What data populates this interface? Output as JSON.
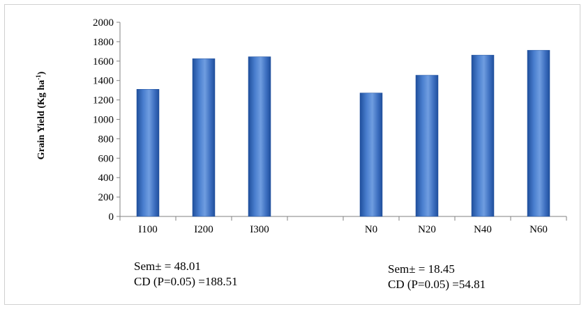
{
  "chart_data": {
    "type": "bar",
    "categories": [
      "I100",
      "I200",
      "I300",
      "",
      "N0",
      "N20",
      "N40",
      "N60"
    ],
    "values": [
      1310,
      1625,
      1645,
      null,
      1272,
      1455,
      1662,
      1712
    ],
    "title": "",
    "xlabel": "",
    "ylabel": {
      "main": "Grain Yield (Kg ha",
      "superscript": "-1",
      "close": ")"
    },
    "ylim": [
      0,
      2000
    ],
    "yticks": [
      0,
      200,
      400,
      600,
      800,
      1000,
      1200,
      1400,
      1600,
      1800,
      2000
    ],
    "grid": false,
    "legend": "none",
    "bar_color": "#4a7fcf",
    "bar_color_dark": "#1f4f9c",
    "annotations": [
      {
        "line1": "Sem± = 48.01",
        "line2": "CD (P=0.05) =188.51"
      },
      {
        "line1": "Sem± = 18.45",
        "line2": "CD (P=0.05) =54.81"
      }
    ]
  }
}
